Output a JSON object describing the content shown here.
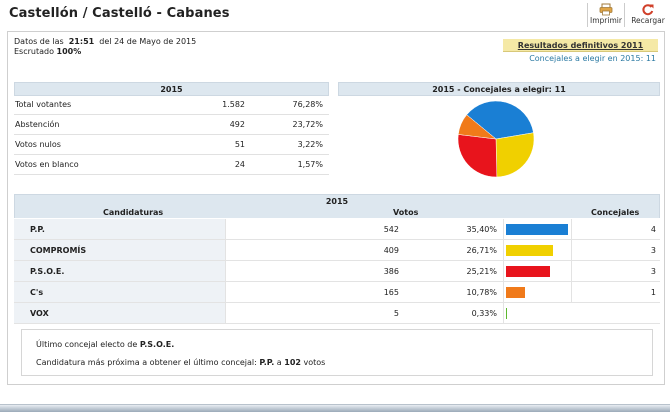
{
  "header": {
    "title": "Castellón / Castelló - Cabanes",
    "print_label": "Imprimir",
    "reload_label": "Recargar"
  },
  "info": {
    "datos_prefix": "Datos de las",
    "time": "21:51",
    "date_text": "del 24 de Mayo de 2015",
    "escrutado_label": "Escrutado",
    "escrutado_value": "100%"
  },
  "previous": {
    "link_label": "Resultados definitivos 2011",
    "concejales_text": "Concejales a elegir en 2015: 11"
  },
  "votes_table": {
    "title": "2015",
    "rows": [
      {
        "label": "Total votantes",
        "value": "1.582",
        "pct": "76,28%"
      },
      {
        "label": "Abstención",
        "value": "492",
        "pct": "23,72%"
      },
      {
        "label": "Votos nulos",
        "value": "51",
        "pct": "3,22%"
      },
      {
        "label": "Votos en blanco",
        "value": "24",
        "pct": "1,57%"
      }
    ]
  },
  "pie": {
    "title": "2015 - Concejales a elegir: 11"
  },
  "results": {
    "title": "2015",
    "col_candidaturas": "Candidaturas",
    "col_votos": "Votos",
    "col_concejales": "Concejales"
  },
  "chart_data": {
    "type": "table",
    "title": "2015",
    "columns": [
      "Candidaturas",
      "Votos",
      "%",
      "Concejales"
    ],
    "rows": [
      {
        "name": "P.P.",
        "votes": "542",
        "pct": "35,40%",
        "pct_value": 35.4,
        "seats": "4",
        "color": "#1a7fd4"
      },
      {
        "name": "COMPROMÍS",
        "votes": "409",
        "pct": "26,71%",
        "pct_value": 26.71,
        "seats": "3",
        "color": "#f0d000"
      },
      {
        "name": "P.S.O.E.",
        "votes": "386",
        "pct": "25,21%",
        "pct_value": 25.21,
        "seats": "3",
        "color": "#e8141c"
      },
      {
        "name": "C's",
        "votes": "165",
        "pct": "10,78%",
        "pct_value": 10.78,
        "seats": "1",
        "color": "#f07a1a"
      },
      {
        "name": "VOX",
        "votes": "5",
        "pct": "0,33%",
        "pct_value": 0.33,
        "seats": "",
        "color": "#5cb82e"
      }
    ],
    "pie_seats": [
      {
        "name": "P.P.",
        "seats": 4,
        "color": "#1a7fd4"
      },
      {
        "name": "COMPROMÍS",
        "seats": 3,
        "color": "#f0d000"
      },
      {
        "name": "P.S.O.E.",
        "seats": 3,
        "color": "#e8141c"
      },
      {
        "name": "C's",
        "seats": 1,
        "color": "#f07a1a"
      }
    ]
  },
  "summary": {
    "last_elected_prefix": "Último concejal electo de",
    "last_elected_party": "P.S.O.E.",
    "closest_prefix": "Candidatura más próxima a obtener el último concejal:",
    "closest_party": "P.P.",
    "closest_mid": "a",
    "closest_votes": "102",
    "closest_suffix": "votos"
  },
  "icons": {
    "print": "printer-icon",
    "reload": "reload-icon"
  }
}
